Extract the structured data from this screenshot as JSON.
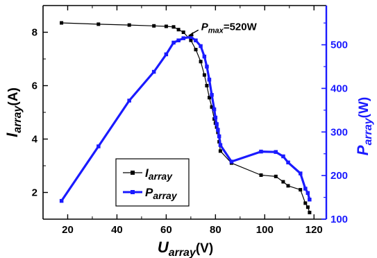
{
  "chart_data": {
    "type": "line",
    "title": "",
    "xlabel": {
      "main": "U",
      "sub": "array",
      "unit": "(V)"
    },
    "ylabel_left": {
      "main": "I",
      "sub": "array",
      "unit": "(A)"
    },
    "ylabel_right": {
      "main": "P",
      "sub": "array",
      "unit": "(W)"
    },
    "xlim": [
      10,
      125
    ],
    "ylim_left": [
      1,
      9
    ],
    "ylim_right": [
      100,
      590
    ],
    "xticks": [
      20,
      40,
      60,
      80,
      100,
      120
    ],
    "yticks_left": [
      2,
      4,
      6,
      8
    ],
    "yticks_right": [
      100,
      200,
      300,
      400,
      500
    ],
    "grid": false,
    "legend_position": "lower-left",
    "series": [
      {
        "name_main": "I",
        "name_sub": "array",
        "axis": "left",
        "color": "#000000",
        "x": [
          17.5,
          32.5,
          45,
          55,
          60,
          63,
          65,
          67,
          70,
          72,
          74,
          75.5,
          76.5,
          77.5,
          78.5,
          79.5,
          80,
          80.5,
          81,
          81.5,
          82,
          86.5,
          98.5,
          104.5,
          107.5,
          109.5,
          114.5,
          116.5,
          117.5,
          118.2
        ],
        "y": [
          8.35,
          8.3,
          8.27,
          8.24,
          8.22,
          8.2,
          8.1,
          8.0,
          7.7,
          7.35,
          6.9,
          6.4,
          6.0,
          5.55,
          5.2,
          4.75,
          4.6,
          4.45,
          4.25,
          3.9,
          3.55,
          3.1,
          2.65,
          2.6,
          2.4,
          2.25,
          2.1,
          1.6,
          1.45,
          1.25
        ]
      },
      {
        "name_main": "P",
        "name_sub": "array",
        "axis": "right",
        "color": "#1a1aff",
        "x": [
          17.5,
          32.5,
          45,
          55,
          60,
          63,
          65,
          67,
          70,
          72,
          74,
          75.5,
          76.5,
          77.5,
          78.5,
          79.5,
          80,
          80.5,
          81,
          81.5,
          82,
          86.5,
          98.5,
          104.5,
          107.5,
          109.5,
          114.5,
          116.5,
          117.5,
          118.2
        ],
        "y": [
          142,
          267,
          372,
          438,
          478,
          505,
          510,
          515,
          518,
          510,
          497,
          473,
          450,
          420,
          385,
          352,
          333,
          318,
          305,
          290,
          270,
          232,
          255,
          254,
          244,
          230,
          205,
          170,
          160,
          145
        ]
      }
    ],
    "annotation": {
      "main": "P",
      "sub": "max",
      "text": "=520W",
      "x": 68,
      "y": 518,
      "axis": "right"
    }
  }
}
